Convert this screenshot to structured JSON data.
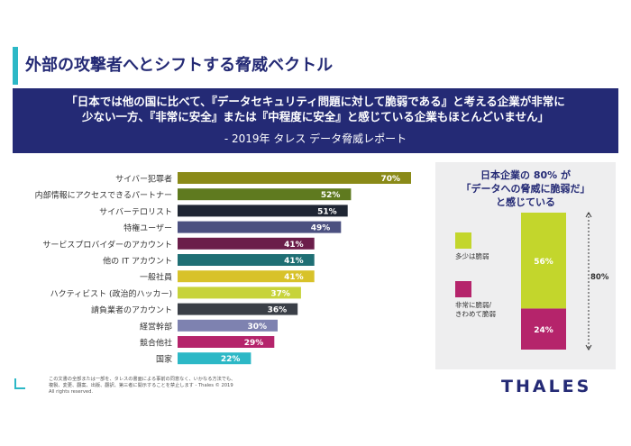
{
  "title": "外部の攻撃者へとシフトする脅威ベクトル",
  "quote": {
    "line1": "「日本では他の国に比べて、『データセキュリティ問題に対して脆弱である』と考える企業が非常に",
    "line2": "少ない一方、『非常に安全』または『中程度に安全』と感じている企業もほとんどいません」",
    "source": "- 2019年 タレス データ脅威レポート"
  },
  "chart_data": [
    {
      "type": "bar",
      "orientation": "horizontal",
      "categories": [
        "サイバー犯罪者",
        "内部情報にアクセスできるパートナー",
        "サイバーテロリスト",
        "特権ユーザー",
        "サービスプロバイダーのアカウント",
        "他の IT アカウント",
        "一般社員",
        "ハクティビスト (政治的ハッカー)",
        "請負業者のアカウント",
        "経営幹部",
        "競合他社",
        "国家"
      ],
      "values": [
        70,
        52,
        51,
        49,
        41,
        41,
        41,
        37,
        36,
        30,
        29,
        22
      ],
      "data_labels": [
        "70%",
        "52%",
        "51%",
        "49%",
        "41%",
        "41%",
        "41%",
        "37%",
        "36%",
        "30%",
        "29%",
        "22%"
      ],
      "colors": [
        "#8a8a18",
        "#5f7a1f",
        "#1f2633",
        "#4b5080",
        "#6b1e4a",
        "#1f6f74",
        "#d8c22a",
        "#c7d33a",
        "#3a3f47",
        "#7e82b0",
        "#b5246b",
        "#2cb8c6"
      ],
      "xlim": [
        0,
        100
      ]
    },
    {
      "type": "bar",
      "stacked": true,
      "title_line1": "日本企業の 80% が",
      "title_line2": "「データへの脅威に脆弱だ」",
      "title_line3": "と感じている",
      "series": [
        {
          "name": "多少は脆弱",
          "value": 56,
          "label": "56%",
          "color": "#c3d62c"
        },
        {
          "name": "非常に脆弱/きわめて脆弱",
          "value": 24,
          "label": "24%",
          "color": "#b5246b"
        }
      ],
      "total_label": "80%"
    }
  ],
  "legend": {
    "item1": "多少は脆弱",
    "item2_line1": "非常に脆弱/",
    "item2_line2": "きわめて脆弱"
  },
  "footer": {
    "line1": "この文書の全部または一部を、タレスの書面による事前の同意なく、いかなる方法でも、",
    "line2": "複製、変更、翻案、出版、翻訳、第三者に開示することを禁止します - Thales © 2019",
    "line3": "All rights reserved."
  },
  "logo": "THALES"
}
